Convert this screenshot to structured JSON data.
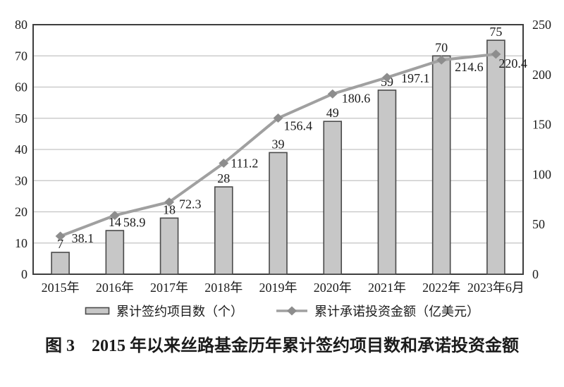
{
  "figure": {
    "caption": "图 3　2015 年以来丝路基金历年累计签约项目数和承诺投资金额"
  },
  "chart_data": {
    "type": "bar+line combo",
    "title": "图 3　2015 年以来丝路基金历年累计签约项目数和承诺投资金额",
    "categories": [
      "2015年",
      "2016年",
      "2017年",
      "2018年",
      "2019年",
      "2020年",
      "2021年",
      "2022年",
      "2023年6月"
    ],
    "series": [
      {
        "name": "累计签约项目数（个）",
        "type": "bar",
        "axis": "left",
        "values": [
          7,
          14,
          18,
          28,
          39,
          49,
          59,
          70,
          75
        ]
      },
      {
        "name": "累计承诺投资金额（亿美元）",
        "type": "line",
        "axis": "right",
        "values": [
          38.1,
          58.9,
          72.3,
          111.2,
          156.4,
          180.6,
          197.1,
          214.6,
          220.4
        ]
      }
    ],
    "left_axis": {
      "min": 0,
      "max": 80,
      "step": 10
    },
    "right_axis": {
      "min": 0,
      "max": 250,
      "step": 50
    },
    "grid": "horizontal",
    "legend_position": "bottom",
    "colors": {
      "bar_fill": "#c7c7c7",
      "bar_stroke": "#4a4a4a",
      "line": "#a0a0a0",
      "marker": "#8d8d8d",
      "grid": "#c3c3c3",
      "axis": "#3d3d3d",
      "text": "#1b1b1b"
    }
  }
}
